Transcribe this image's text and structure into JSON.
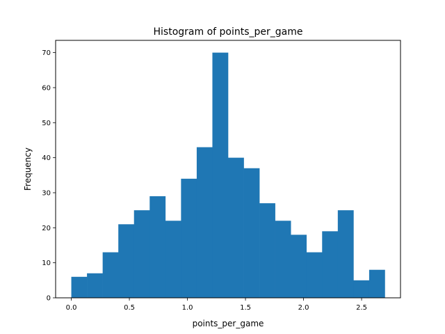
{
  "chart_data": {
    "type": "bar",
    "subtype": "histogram",
    "title": "Histogram of points_per_game",
    "xlabel": "points_per_game",
    "ylabel": "Frequency",
    "bin_edges": [
      0.0,
      0.135,
      0.27,
      0.405,
      0.54,
      0.675,
      0.81,
      0.945,
      1.08,
      1.215,
      1.35,
      1.485,
      1.62,
      1.755,
      1.89,
      2.025,
      2.16,
      2.295,
      2.43,
      2.565,
      2.7
    ],
    "values": [
      6,
      7,
      13,
      21,
      25,
      29,
      22,
      34,
      43,
      70,
      40,
      37,
      27,
      22,
      18,
      13,
      19,
      25,
      5,
      8
    ],
    "xlim": [
      -0.135,
      2.835
    ],
    "ylim": [
      0,
      73.5
    ],
    "xticks": [
      0.0,
      0.5,
      1.0,
      1.5,
      2.0,
      2.5
    ],
    "xtick_labels": [
      "0.0",
      "0.5",
      "1.0",
      "1.5",
      "2.0",
      "2.5"
    ],
    "yticks": [
      0,
      10,
      20,
      30,
      40,
      50,
      60,
      70
    ],
    "ytick_labels": [
      "0",
      "10",
      "20",
      "30",
      "40",
      "50",
      "60",
      "70"
    ],
    "bar_color": "#1f77b4",
    "grid": false,
    "legend": "none"
  }
}
